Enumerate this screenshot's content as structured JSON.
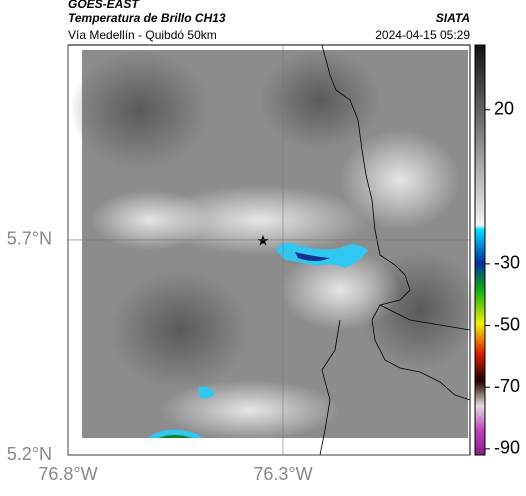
{
  "header": {
    "source": "GOES-EAST",
    "title": "Temperatura de Brillo CH13",
    "brand": "SIATA",
    "region": "Vía Medellín - Quibdó 50km",
    "timestamp": "2024-04-15 05:29"
  },
  "map": {
    "lat_range": [
      5.2,
      6.153
    ],
    "lon_range": [
      -76.8,
      -75.865
    ],
    "lat_ticks": [
      {
        "value": 5.7,
        "label": "5.7°N"
      },
      {
        "value": 5.2,
        "label": "5.2°N"
      }
    ],
    "lon_ticks": [
      {
        "value": -76.8,
        "label": "76.8°W"
      },
      {
        "value": -76.3,
        "label": "76.3°W"
      }
    ]
  },
  "colorbar": {
    "range": [
      -92,
      41
    ],
    "ticks": [
      20,
      -30,
      -50,
      -70,
      -90
    ]
  }
}
